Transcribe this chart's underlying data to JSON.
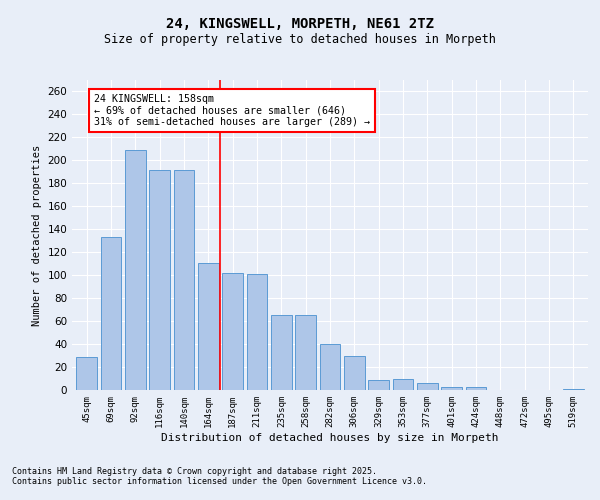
{
  "title": "24, KINGSWELL, MORPETH, NE61 2TZ",
  "subtitle": "Size of property relative to detached houses in Morpeth",
  "xlabel": "Distribution of detached houses by size in Morpeth",
  "ylabel": "Number of detached properties",
  "categories": [
    "45sqm",
    "69sqm",
    "92sqm",
    "116sqm",
    "140sqm",
    "164sqm",
    "187sqm",
    "211sqm",
    "235sqm",
    "258sqm",
    "282sqm",
    "306sqm",
    "329sqm",
    "353sqm",
    "377sqm",
    "401sqm",
    "424sqm",
    "448sqm",
    "472sqm",
    "495sqm",
    "519sqm"
  ],
  "values": [
    29,
    133,
    209,
    192,
    192,
    111,
    102,
    101,
    65,
    65,
    40,
    30,
    9,
    10,
    6,
    3,
    3,
    0,
    0,
    0,
    1
  ],
  "bar_color": "#aec6e8",
  "bar_edge_color": "#5b9bd5",
  "background_color": "#e8eef8",
  "grid_color": "#ffffff",
  "vline_x": 5.5,
  "vline_color": "red",
  "annotation_text": "24 KINGSWELL: 158sqm\n← 69% of detached houses are smaller (646)\n31% of semi-detached houses are larger (289) →",
  "annotation_box_color": "white",
  "annotation_box_edge_color": "red",
  "ylim": [
    0,
    270
  ],
  "yticks": [
    0,
    20,
    40,
    60,
    80,
    100,
    120,
    140,
    160,
    180,
    200,
    220,
    240,
    260
  ],
  "footnote1": "Contains HM Land Registry data © Crown copyright and database right 2025.",
  "footnote2": "Contains public sector information licensed under the Open Government Licence v3.0."
}
